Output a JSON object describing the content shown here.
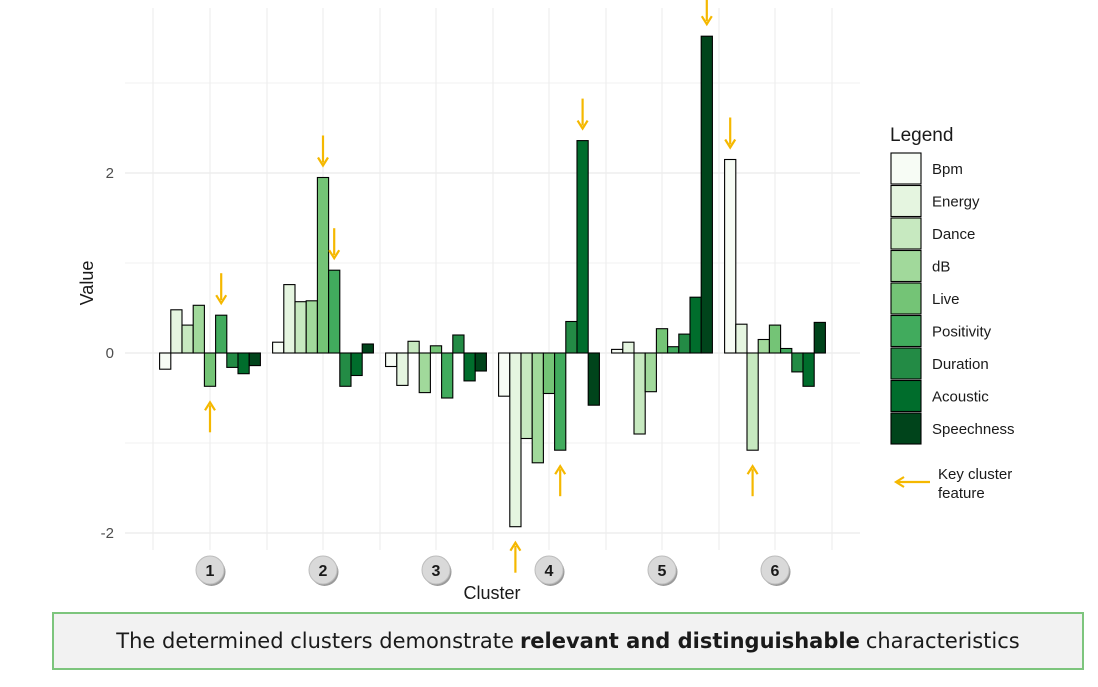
{
  "chart_data": {
    "type": "bar",
    "xlabel": "Cluster",
    "ylabel": "Value",
    "ylim": [
      -2.1,
      3.8
    ],
    "yticks": [
      -2,
      0,
      2
    ],
    "categories": [
      "1",
      "2",
      "3",
      "4",
      "5",
      "6"
    ],
    "grid": true,
    "legend_position": "right",
    "legend_title": "Legend",
    "series": [
      {
        "name": "Bpm",
        "color": "#f7fcf5",
        "values": [
          -0.18,
          0.12,
          -0.15,
          -0.48,
          0.04,
          2.15
        ]
      },
      {
        "name": "Energy",
        "color": "#e5f5e0",
        "values": [
          0.48,
          0.76,
          -0.36,
          -1.93,
          0.12,
          0.32
        ]
      },
      {
        "name": "Dance",
        "color": "#c7e9c0",
        "values": [
          0.31,
          0.57,
          0.13,
          -0.95,
          -0.9,
          -1.08
        ]
      },
      {
        "name": "dB",
        "color": "#a1d99b",
        "values": [
          0.53,
          0.58,
          -0.44,
          -1.22,
          -0.43,
          0.15
        ]
      },
      {
        "name": "Live",
        "color": "#74c476",
        "values": [
          -0.37,
          1.95,
          0.08,
          -0.45,
          0.27,
          0.31
        ]
      },
      {
        "name": "Positivity",
        "color": "#41ab5d",
        "values": [
          0.42,
          0.92,
          -0.5,
          -1.08,
          0.07,
          0.05
        ]
      },
      {
        "name": "Duration",
        "color": "#238b45",
        "values": [
          -0.16,
          -0.37,
          0.2,
          0.35,
          0.21,
          -0.21
        ]
      },
      {
        "name": "Acoustic",
        "color": "#006d2c",
        "values": [
          -0.23,
          -0.25,
          -0.31,
          2.36,
          0.62,
          -0.37
        ]
      },
      {
        "name": "Speechness",
        "color": "#00441b",
        "values": [
          -0.14,
          0.1,
          -0.2,
          -0.58,
          3.52,
          0.34
        ]
      }
    ],
    "key_features": [
      {
        "cluster": 0,
        "series": 4,
        "direction": "up"
      },
      {
        "cluster": 0,
        "series": 5,
        "direction": "down"
      },
      {
        "cluster": 1,
        "series": 4,
        "direction": "down"
      },
      {
        "cluster": 1,
        "series": 5,
        "direction": "down"
      },
      {
        "cluster": 3,
        "series": 1,
        "direction": "up"
      },
      {
        "cluster": 3,
        "series": 5,
        "direction": "up"
      },
      {
        "cluster": 3,
        "series": 7,
        "direction": "down"
      },
      {
        "cluster": 4,
        "series": 8,
        "direction": "down"
      },
      {
        "cluster": 5,
        "series": 0,
        "direction": "down"
      },
      {
        "cluster": 5,
        "series": 2,
        "direction": "up"
      }
    ],
    "annotation_label": "Key cluster feature",
    "arrow_color": "#f5b800"
  },
  "caption": {
    "before": "The determined clusters demonstrate",
    "bold": "relevant and distinguishable",
    "after": "characteristics"
  }
}
